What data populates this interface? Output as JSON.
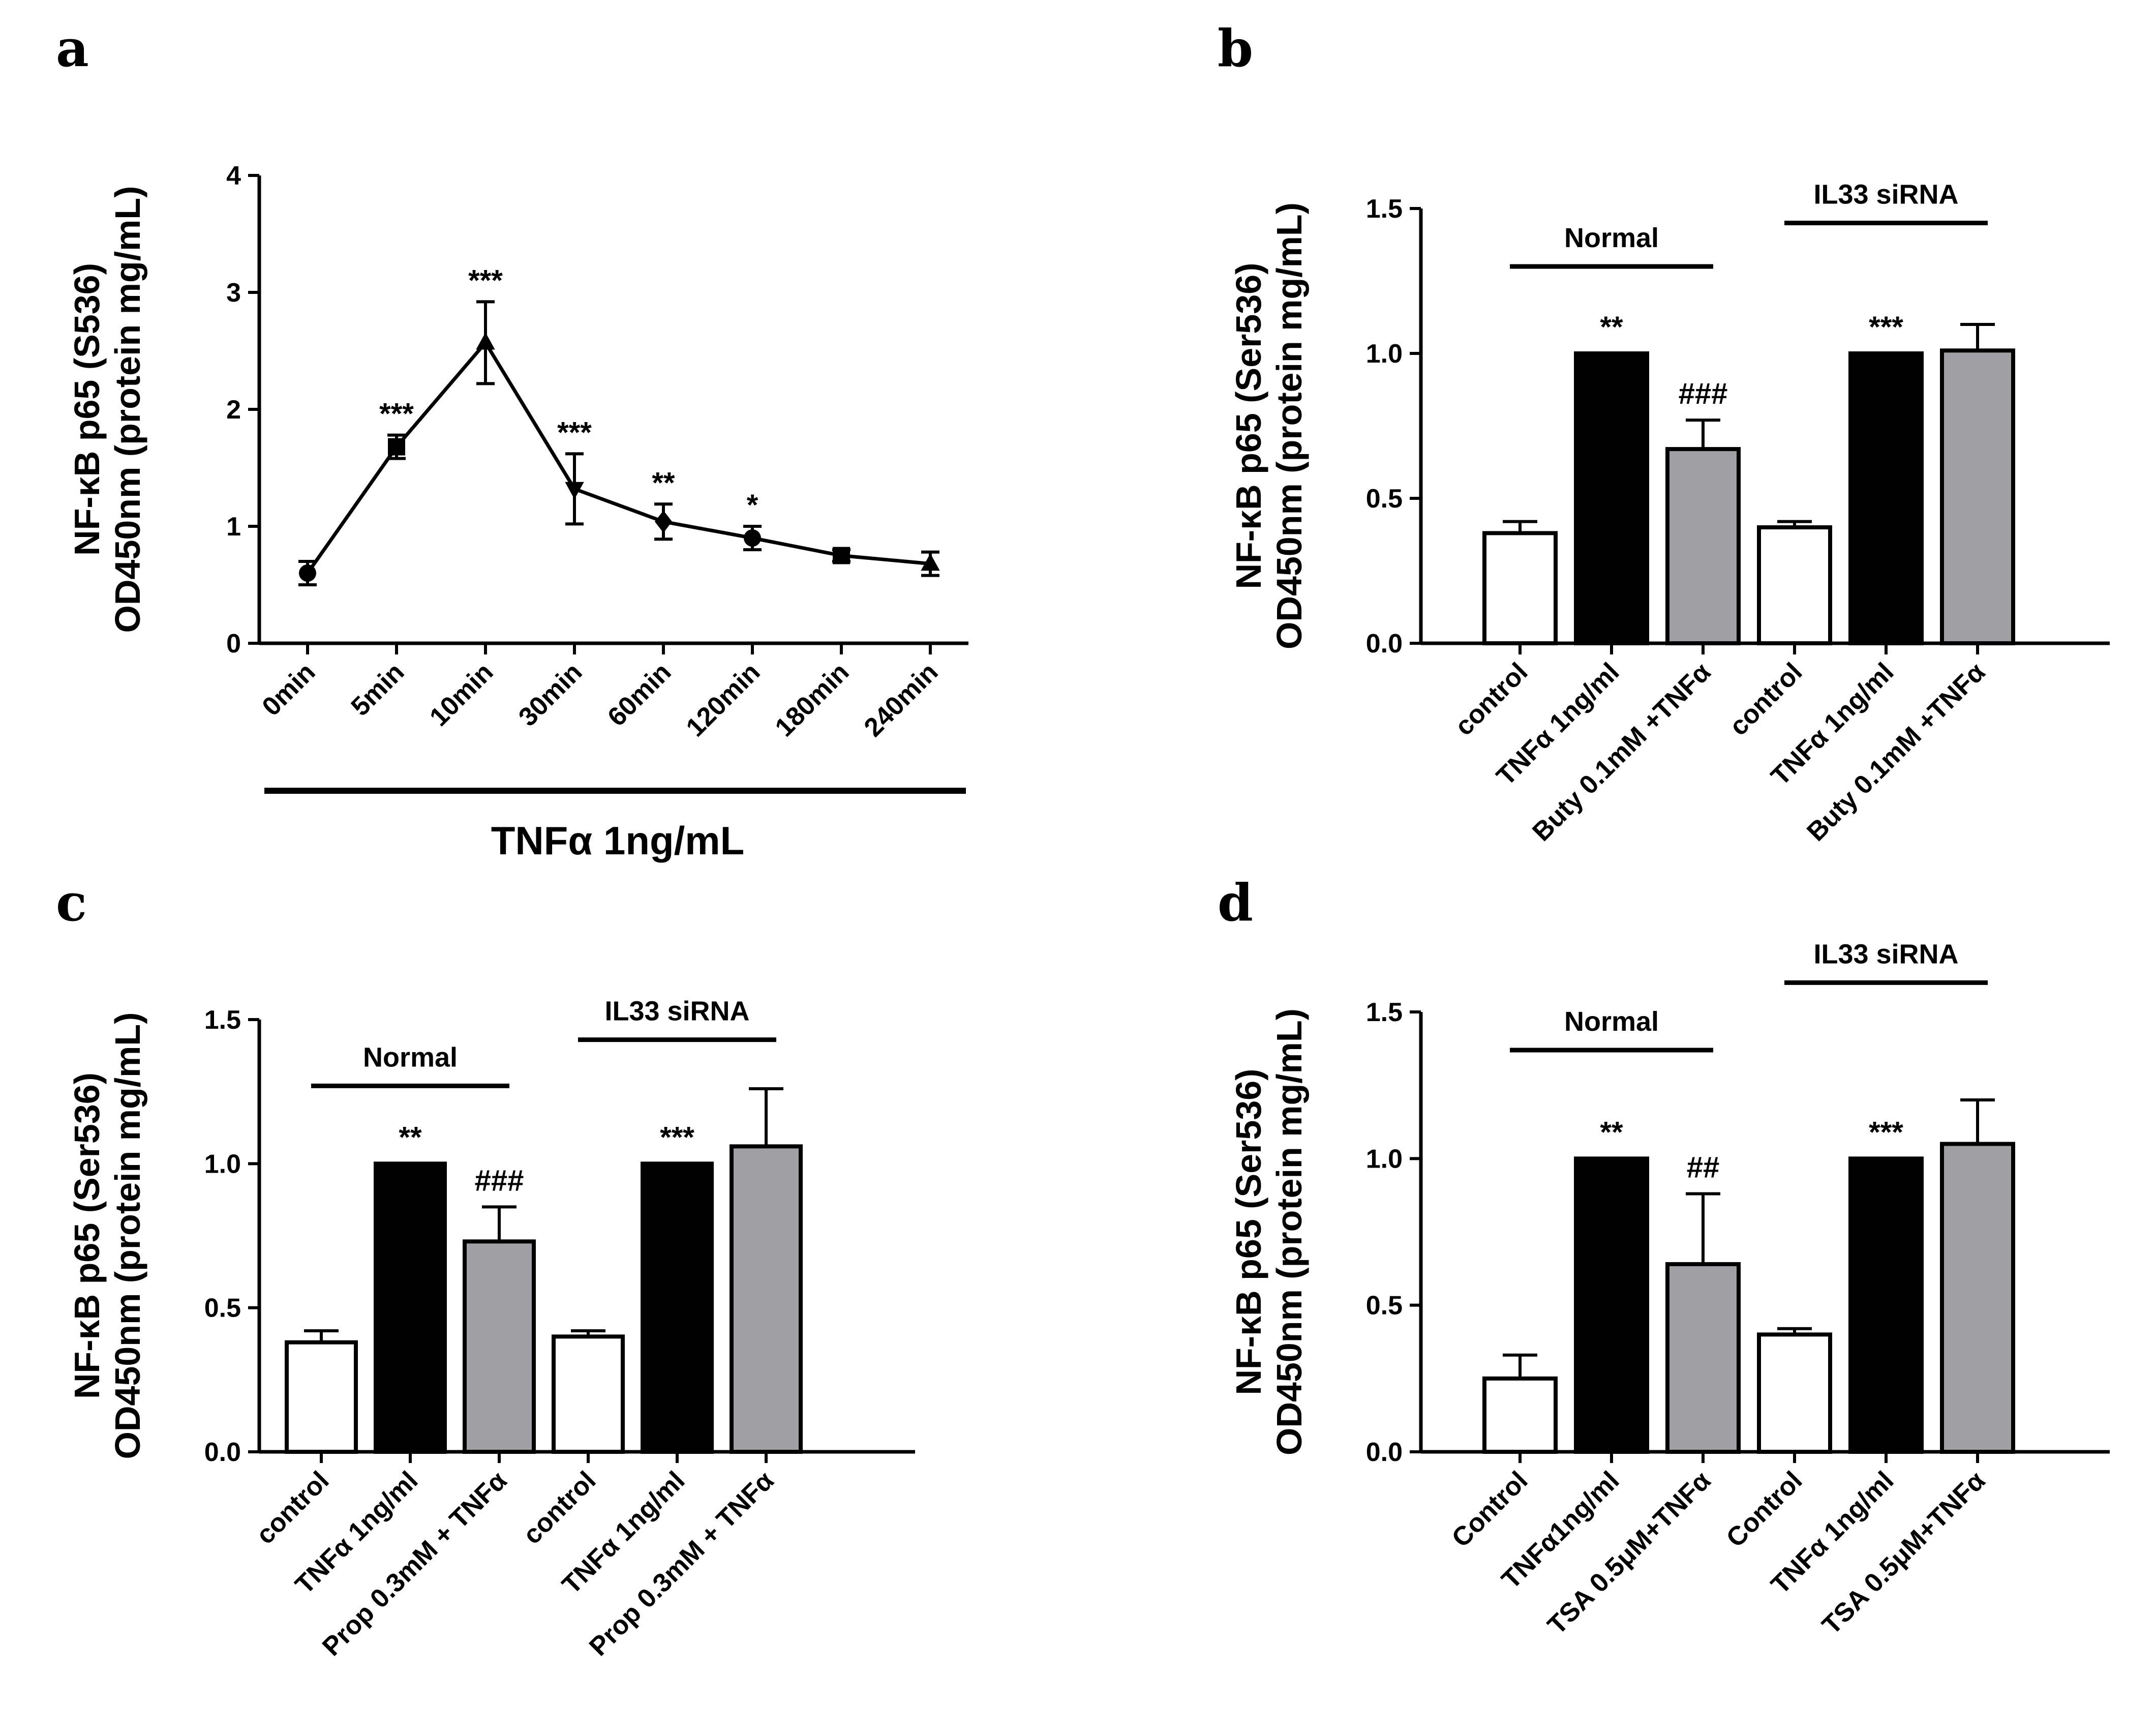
{
  "chart_data": [
    {
      "panel": "a",
      "type": "line",
      "ylabel_line1": "NF-κB p65 (S536)",
      "ylabel_line2": "OD450nm (protein mg/mL)",
      "xlabel": "TNFα 1ng/mL",
      "ylim": [
        0,
        4
      ],
      "yticks": [
        "0",
        "1",
        "2",
        "3",
        "4"
      ],
      "categories": [
        "0min",
        "5min",
        "10min",
        "30min",
        "60min",
        "120min",
        "180min",
        "240min"
      ],
      "values": [
        0.6,
        1.68,
        2.57,
        1.32,
        1.04,
        0.9,
        0.75,
        0.68
      ],
      "errors": [
        0.1,
        0.1,
        0.35,
        0.3,
        0.15,
        0.1,
        0.05,
        0.1
      ],
      "markers": [
        "circle",
        "square",
        "triangle",
        "triangle-down",
        "diamond",
        "circle",
        "square",
        "triangle"
      ],
      "significance": [
        "",
        "***",
        "***",
        "***",
        "**",
        "*",
        "",
        ""
      ]
    },
    {
      "panel": "b",
      "type": "bar",
      "ylabel_line1": "NF-κB p65 (Ser536)",
      "ylabel_line2": "OD450nm (protein mg/mL)",
      "ylim": [
        0,
        1.5
      ],
      "yticks": [
        "0.0",
        "0.5",
        "1.0",
        "1.5"
      ],
      "categories": [
        "control",
        "TNFα 1ng/ml",
        "Buty 0.1mM +TNFα",
        "control",
        "TNFα 1ng/ml",
        "Buty 0.1mM +TNFα"
      ],
      "values": [
        0.38,
        1.0,
        0.67,
        0.4,
        1.0,
        1.01
      ],
      "errors": [
        0.04,
        0,
        0.1,
        0.02,
        0,
        0.09
      ],
      "fills": [
        "#ffffff",
        "#000000",
        "#a0a0a4",
        "#ffffff",
        "#000000",
        "#a0a0a4"
      ],
      "significance": [
        "",
        "**",
        "###",
        "",
        "***",
        ""
      ],
      "groups": [
        {
          "label": "Normal",
          "from": 0,
          "to": 2
        },
        {
          "label": "IL33 siRNA",
          "from": 3,
          "to": 5
        }
      ]
    },
    {
      "panel": "c",
      "type": "bar",
      "ylabel_line1": "NF-κB p65 (Ser536)",
      "ylabel_line2": "OD450nm (protein mg/mL)",
      "ylim": [
        0,
        1.5
      ],
      "yticks": [
        "0.0",
        "0.5",
        "1.0",
        "1.5"
      ],
      "categories": [
        "control",
        "TNFα 1ng/ml",
        "Prop 0.3mM + TNFα",
        "control",
        "TNFα 1ng/ml",
        "Prop 0.3mM + TNFα"
      ],
      "values": [
        0.38,
        1.0,
        0.73,
        0.4,
        1.0,
        1.06
      ],
      "errors": [
        0.04,
        0,
        0.12,
        0.02,
        0,
        0.2
      ],
      "fills": [
        "#ffffff",
        "#000000",
        "#a0a0a4",
        "#ffffff",
        "#000000",
        "#a0a0a4"
      ],
      "significance": [
        "",
        "**",
        "###",
        "",
        "***",
        ""
      ],
      "groups": [
        {
          "label": "Normal",
          "from": 0,
          "to": 2
        },
        {
          "label": "IL33 siRNA",
          "from": 3,
          "to": 5
        }
      ]
    },
    {
      "panel": "d",
      "type": "bar",
      "ylabel_line1": "NF-κB p65 (Ser536)",
      "ylabel_line2": "OD450nm (protein mg/mL)",
      "ylim": [
        0,
        1.5
      ],
      "yticks": [
        "0.0",
        "0.5",
        "1.0",
        "1.5"
      ],
      "categories": [
        "Control",
        "TNFα1ng/ml",
        "TSA 0.5μM+TNFα",
        "Control",
        "TNFα 1ng/ml",
        "TSA 0.5μM+TNFα"
      ],
      "values": [
        0.25,
        1.0,
        0.64,
        0.4,
        1.0,
        1.05
      ],
      "errors": [
        0.08,
        0,
        0.24,
        0.02,
        0,
        0.15
      ],
      "fills": [
        "#ffffff",
        "#000000",
        "#a0a0a4",
        "#ffffff",
        "#000000",
        "#a0a0a4"
      ],
      "significance": [
        "",
        "**",
        "##",
        "",
        "***",
        ""
      ],
      "groups": [
        {
          "label": "Normal",
          "from": 0,
          "to": 2
        },
        {
          "label": "IL33 siRNA",
          "from": 3,
          "to": 5
        }
      ]
    }
  ]
}
